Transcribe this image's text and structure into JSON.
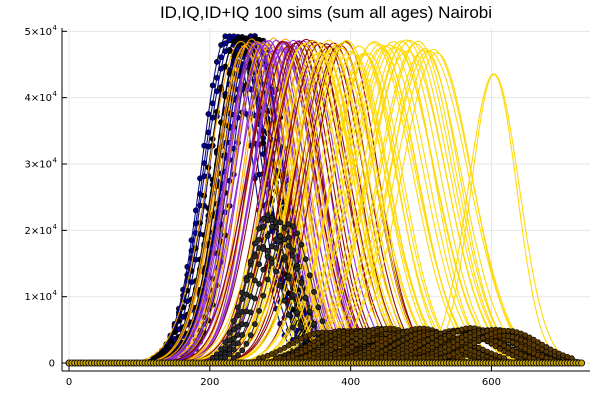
{
  "chart_data": {
    "type": "line",
    "title": "ID,IQ,ID+IQ 100 sims (sum all ages) Nairobi",
    "xlabel": "",
    "ylabel": "",
    "xlim": [
      -10,
      740
    ],
    "ylim": [
      -1200,
      50500
    ],
    "x_ticks": [
      0,
      200,
      400,
      600
    ],
    "x_tick_labels": [
      "0",
      "200",
      "400",
      "600"
    ],
    "y_ticks": [
      0,
      10000,
      20000,
      30000,
      40000,
      50000
    ],
    "y_tick_labels": [
      {
        "mantissa": "0",
        "exponent": ""
      },
      {
        "mantissa": "1×10",
        "exponent": "4"
      },
      {
        "mantissa": "2×10",
        "exponent": "4"
      },
      {
        "mantissa": "3×10",
        "exponent": "4"
      },
      {
        "mantissa": "4×10",
        "exponent": "4"
      },
      {
        "mantissa": "5×10",
        "exponent": "4"
      }
    ],
    "grid": true,
    "legend": "none",
    "x_max": 730,
    "series_groups": [
      {
        "color": "#00008b",
        "marker": "circle",
        "peak_min": 228,
        "peak_max": 268,
        "height_min": 48500,
        "height_max": 49500,
        "width": 38,
        "count": 12
      },
      {
        "color": "#000000",
        "marker": "circle",
        "peak_min": 240,
        "peak_max": 270,
        "height_min": 48800,
        "height_max": 49200,
        "width": 38,
        "count": 5
      },
      {
        "color": "#ffa500",
        "marker": "none",
        "peak_min": 245,
        "peak_max": 305,
        "height_min": 47500,
        "height_max": 49000,
        "width": 42,
        "count": 16
      },
      {
        "color": "#8a2be2",
        "marker": "none",
        "peak_min": 262,
        "peak_max": 330,
        "height_min": 47000,
        "height_max": 48800,
        "width": 44,
        "count": 16
      },
      {
        "color": "#8b0000",
        "marker": "none",
        "peak_min": 300,
        "peak_max": 395,
        "height_min": 47500,
        "height_max": 48800,
        "width": 47,
        "count": 16
      },
      {
        "color": "#ffd700",
        "marker": "none",
        "peak_min": 335,
        "peak_max": 520,
        "height_min": 46500,
        "height_max": 48800,
        "width": 52,
        "count": 40
      },
      {
        "color": "#ffd700",
        "marker": "none",
        "peak_min": 601,
        "peak_max": 604,
        "height_min": 43500,
        "height_max": 48500,
        "width": 35,
        "count": 2
      },
      {
        "color": "#2a2a2a",
        "marker": "circle",
        "peak_min": 272,
        "peak_max": 310,
        "height_min": 16000,
        "height_max": 25000,
        "width": 30,
        "count": 6
      },
      {
        "color": "#5a3a00",
        "marker": "circle",
        "peak_min": 360,
        "peak_max": 620,
        "height_min": 3000,
        "height_max": 5300,
        "width": 45,
        "count": 40
      }
    ]
  }
}
